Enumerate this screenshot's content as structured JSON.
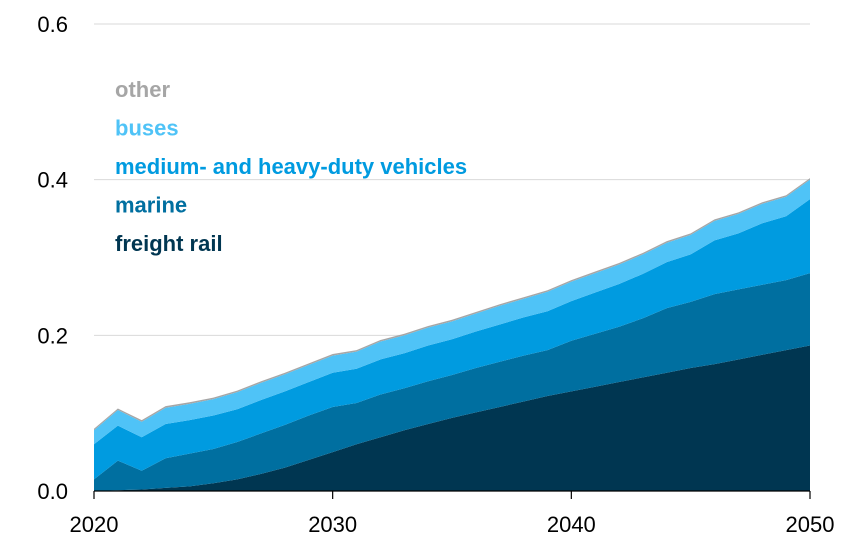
{
  "chart_data": {
    "type": "area",
    "stacked": true,
    "title": "",
    "xlabel": "",
    "ylabel": "",
    "xlim": [
      2020,
      2050
    ],
    "ylim": [
      0,
      0.6
    ],
    "grid": "horizontal",
    "legend_position": "top-left",
    "x": [
      2020,
      2021,
      2022,
      2023,
      2024,
      2025,
      2026,
      2027,
      2028,
      2029,
      2030,
      2031,
      2032,
      2033,
      2034,
      2035,
      2036,
      2037,
      2038,
      2039,
      2040,
      2041,
      2042,
      2043,
      2044,
      2045,
      2046,
      2047,
      2048,
      2049,
      2050
    ],
    "x_ticks": [
      "2020",
      "2030",
      "2040",
      "2050"
    ],
    "y_ticks": [
      "0.0",
      "0.2",
      "0.4",
      "0.6"
    ],
    "series": [
      {
        "name": "freight rail",
        "color": "#003651",
        "values": [
          0.0,
          0.001,
          0.002,
          0.004,
          0.006,
          0.01,
          0.015,
          0.022,
          0.03,
          0.04,
          0.05,
          0.06,
          0.069,
          0.078,
          0.086,
          0.094,
          0.101,
          0.108,
          0.115,
          0.122,
          0.128,
          0.134,
          0.14,
          0.146,
          0.152,
          0.158,
          0.163,
          0.169,
          0.175,
          0.181,
          0.187
        ]
      },
      {
        "name": "marine",
        "color": "#006fa0",
        "values": [
          0.015,
          0.038,
          0.024,
          0.038,
          0.042,
          0.044,
          0.048,
          0.052,
          0.055,
          0.057,
          0.058,
          0.053,
          0.055,
          0.054,
          0.055,
          0.055,
          0.057,
          0.058,
          0.059,
          0.059,
          0.065,
          0.068,
          0.071,
          0.076,
          0.083,
          0.085,
          0.09,
          0.09,
          0.09,
          0.09,
          0.093
        ]
      },
      {
        "name": "medium- and heavy-duty vehicles",
        "color": "#009be0",
        "values": [
          0.045,
          0.045,
          0.043,
          0.044,
          0.043,
          0.043,
          0.042,
          0.043,
          0.043,
          0.043,
          0.044,
          0.044,
          0.045,
          0.045,
          0.046,
          0.046,
          0.047,
          0.048,
          0.049,
          0.05,
          0.051,
          0.053,
          0.055,
          0.057,
          0.059,
          0.061,
          0.069,
          0.072,
          0.079,
          0.082,
          0.095
        ]
      },
      {
        "name": "buses",
        "color": "#4fc3f7",
        "values": [
          0.018,
          0.02,
          0.02,
          0.021,
          0.021,
          0.021,
          0.022,
          0.022,
          0.022,
          0.022,
          0.022,
          0.022,
          0.023,
          0.023,
          0.023,
          0.023,
          0.023,
          0.024,
          0.024,
          0.025,
          0.025,
          0.025,
          0.025,
          0.025,
          0.025,
          0.025,
          0.025,
          0.025,
          0.025,
          0.025,
          0.025
        ]
      },
      {
        "name": "other",
        "color": "#a6a6a6",
        "values": [
          0.002,
          0.002,
          0.002,
          0.002,
          0.002,
          0.002,
          0.002,
          0.002,
          0.002,
          0.002,
          0.002,
          0.002,
          0.002,
          0.002,
          0.002,
          0.002,
          0.002,
          0.002,
          0.002,
          0.002,
          0.002,
          0.002,
          0.002,
          0.002,
          0.002,
          0.002,
          0.002,
          0.002,
          0.002,
          0.002,
          0.002
        ]
      }
    ],
    "legend_order": [
      "other",
      "buses",
      "medium- and heavy-duty vehicles",
      "marine",
      "freight rail"
    ],
    "gridline_color": "#d9d9d9",
    "axis_color": "#000000"
  }
}
